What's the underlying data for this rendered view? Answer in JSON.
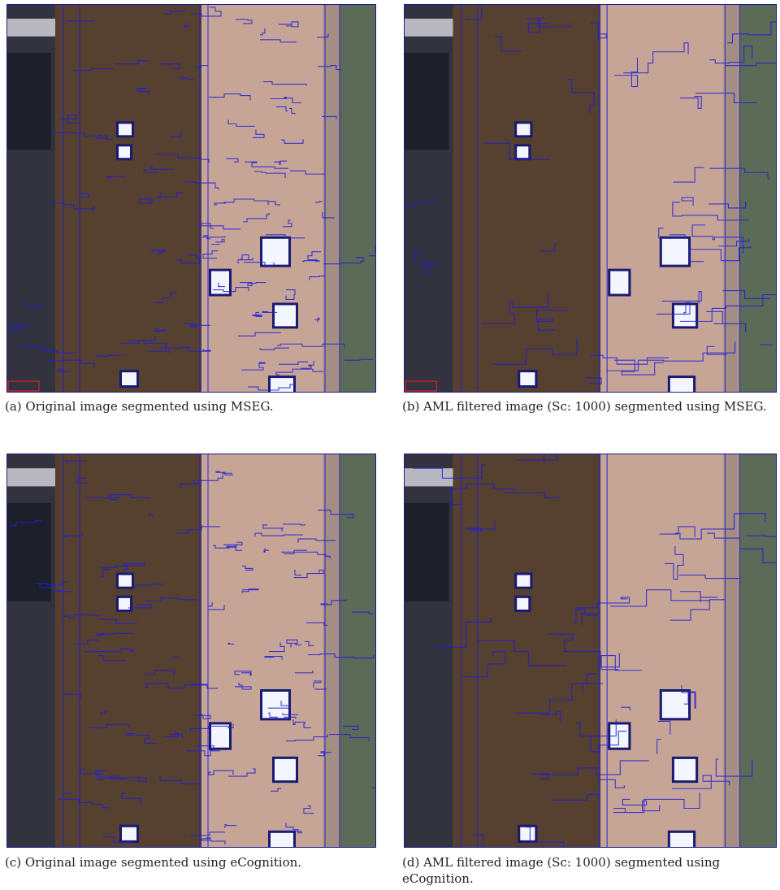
{
  "panels": [
    {
      "caption": "(a) Original image segmented using MSEG."
    },
    {
      "caption": "(b) AML filtered image (Sc: 1000) segmented using MSEG."
    },
    {
      "caption": "(c) Original image segmented using eCognition."
    },
    {
      "caption": "(d) AML filtered image (Sc: 1000) segmented using eCognition."
    }
  ]
}
